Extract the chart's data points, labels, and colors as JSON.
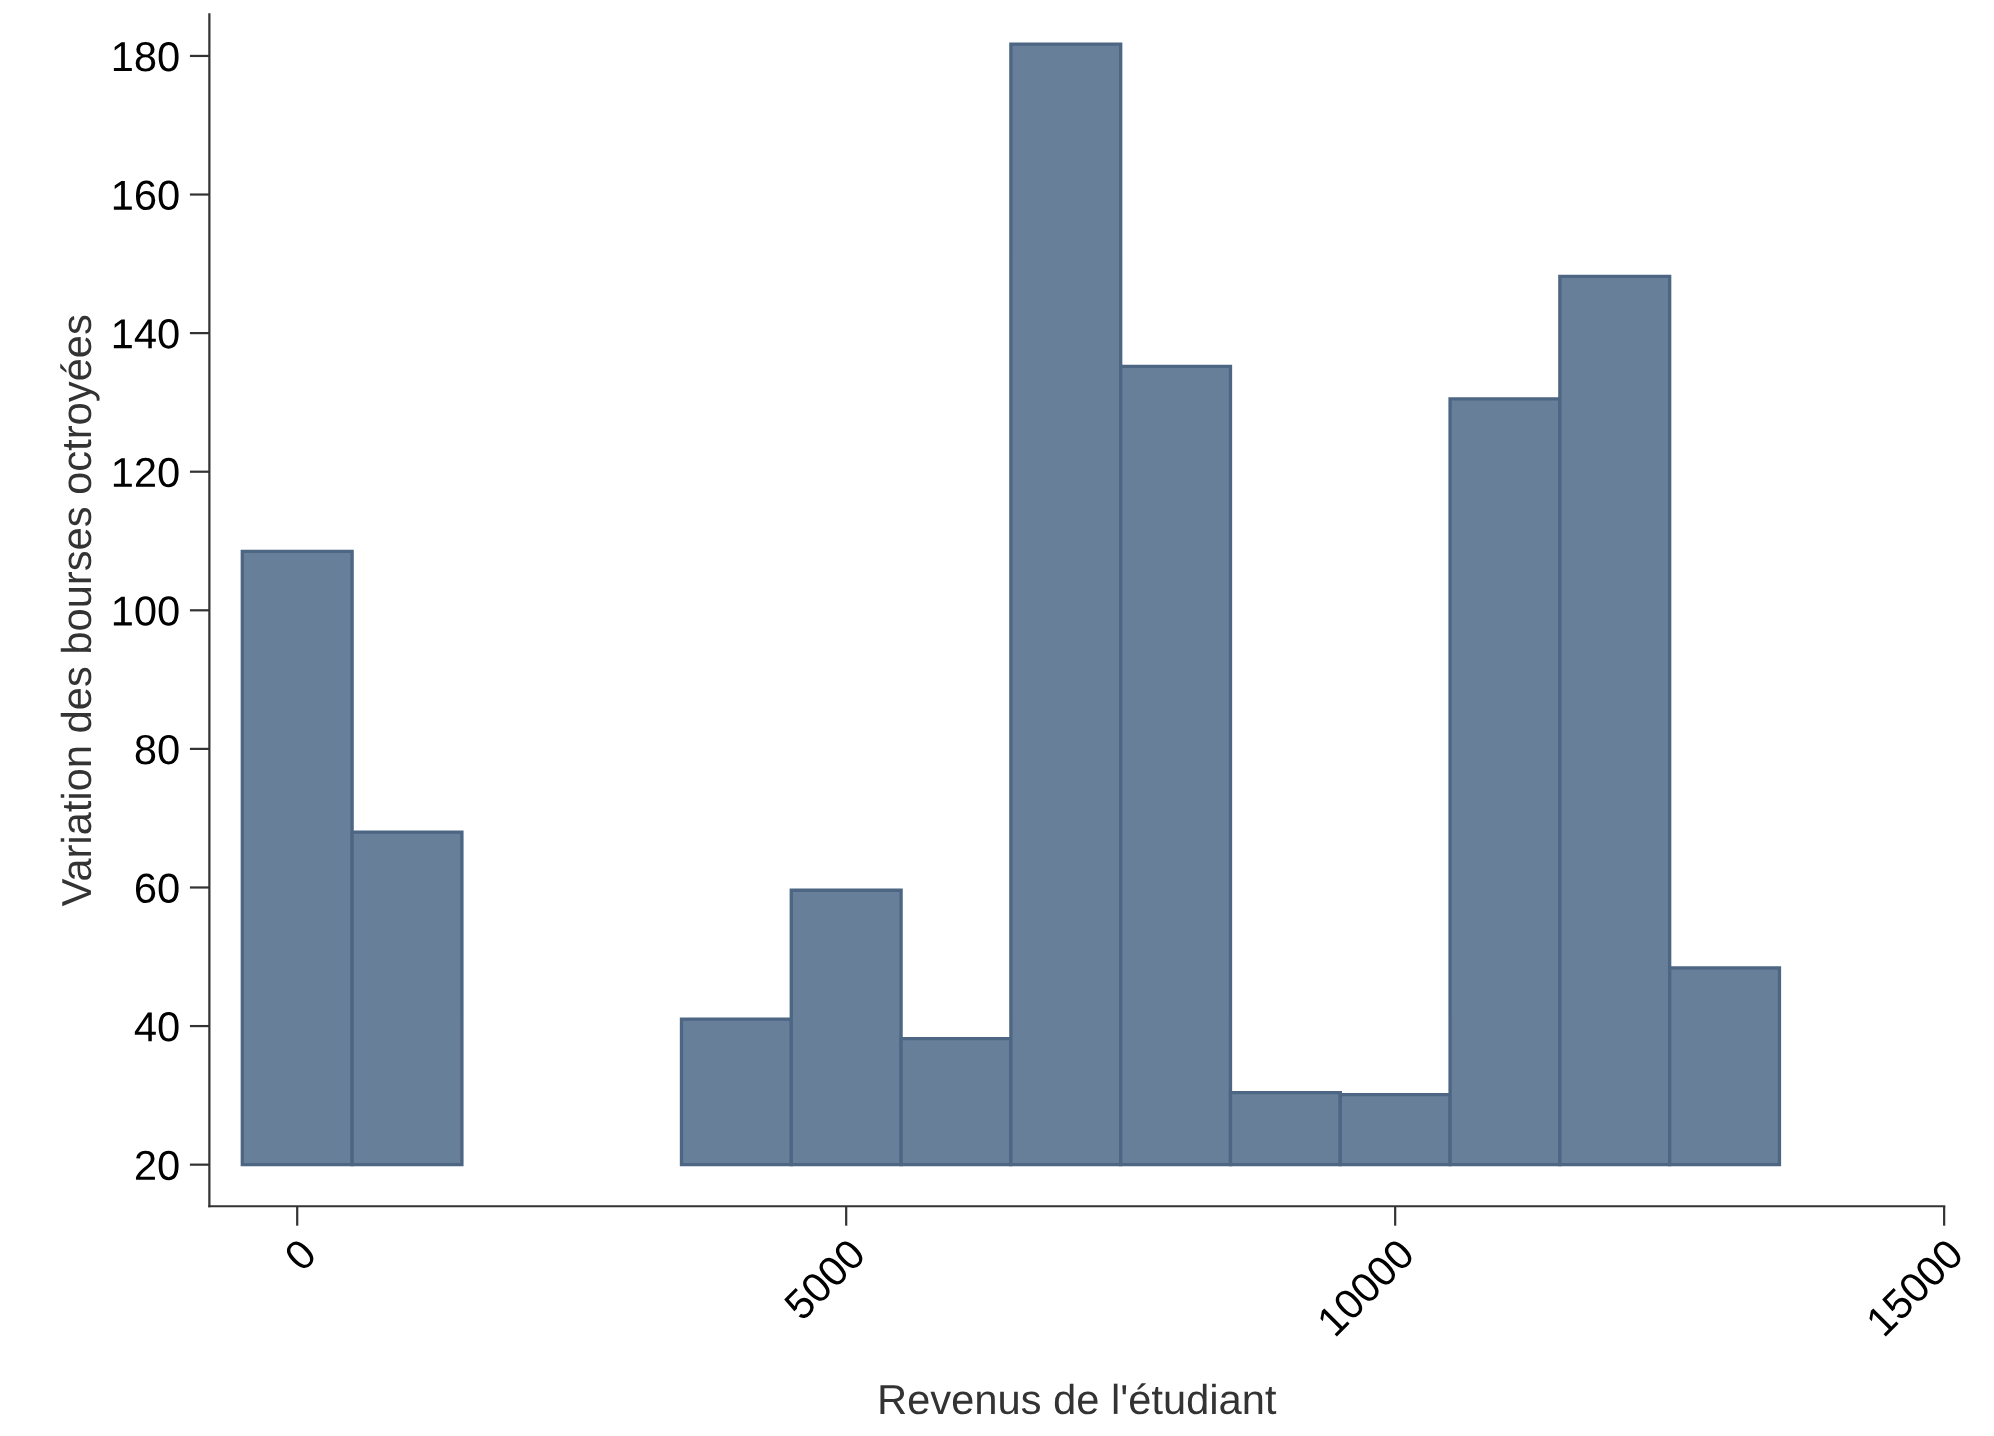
{
  "chart_data": {
    "type": "bar",
    "xlabel": "Revenus de l'étudiant",
    "ylabel": "Variation des bourses octroyées",
    "x": [
      0,
      1000,
      4000,
      5000,
      6000,
      7000,
      8000,
      9000,
      10000,
      11000,
      12000,
      13000
    ],
    "base": [
      20,
      20,
      20,
      20,
      20,
      20,
      20,
      20,
      20,
      20,
      20,
      20
    ],
    "values": [
      88.5,
      48,
      21,
      39.6,
      18.2,
      161.7,
      115.2,
      10.4,
      10.1,
      110.5,
      128.2,
      28.4
    ],
    "color": "#677f99",
    "xlim": [
      -800,
      15000
    ],
    "xticks": [
      0,
      5000,
      10000,
      15000
    ],
    "ylim": [
      14,
      186
    ],
    "yticks": [
      20,
      40,
      60,
      80,
      100,
      120,
      140,
      160,
      180
    ],
    "grid": false,
    "legend": false
  }
}
